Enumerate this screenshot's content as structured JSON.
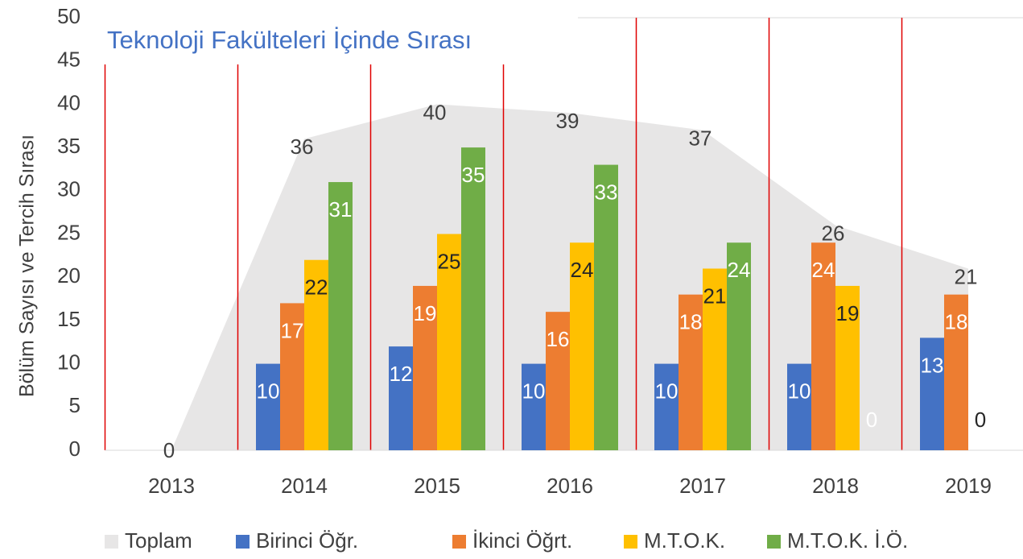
{
  "chart_data": {
    "type": "bar",
    "title": "Teknoloji Fakülteleri İçinde Sırası",
    "y_label": "Bölüm Sayısı ve Tercih Sırası",
    "categories": [
      "2013",
      "2014",
      "2015",
      "2016",
      "2017",
      "2018",
      "2019"
    ],
    "series": [
      {
        "name": "Toplam",
        "type": "area",
        "color": "#e7e6e6",
        "label_color": "#404040",
        "values": [
          0,
          36,
          40,
          39,
          37,
          26,
          21
        ]
      },
      {
        "name": "Birinci Öğr.",
        "color": "#4472c4",
        "label_color": "#ffffff",
        "values": [
          null,
          10,
          12,
          10,
          10,
          10,
          13
        ]
      },
      {
        "name": "İkinci Öğrt.",
        "color": "#ed7d31",
        "label_color": "#ffffff",
        "values": [
          null,
          17,
          19,
          16,
          18,
          24,
          18
        ]
      },
      {
        "name": "M.T.O.K.",
        "color": "#ffc000",
        "label_color": "#262626",
        "values": [
          null,
          22,
          25,
          24,
          21,
          19,
          0
        ]
      },
      {
        "name": "M.T.O.K. İ.Ö.",
        "color": "#70ad47",
        "label_color": "#ffffff",
        "values": [
          null,
          31,
          35,
          33,
          24,
          0,
          null
        ]
      }
    ],
    "ylim": [
      0,
      50
    ],
    "yticks": [
      0,
      5,
      10,
      15,
      20,
      25,
      30,
      35,
      40,
      45,
      50
    ],
    "legend": "bottom"
  }
}
